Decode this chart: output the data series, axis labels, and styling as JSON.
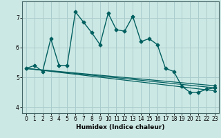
{
  "title": "",
  "xlabel": "Humidex (Indice chaleur)",
  "background_color": "#cce8e4",
  "grid_color": "#aacccc",
  "line_color": "#005f5f",
  "xlim": [
    -0.5,
    23.5
  ],
  "ylim": [
    3.8,
    7.55
  ],
  "xticks": [
    0,
    1,
    2,
    3,
    4,
    5,
    6,
    7,
    8,
    9,
    10,
    11,
    12,
    13,
    14,
    15,
    16,
    17,
    18,
    19,
    20,
    21,
    22,
    23
  ],
  "yticks": [
    4,
    5,
    6,
    7
  ],
  "main_series_x": [
    0,
    1,
    2,
    3,
    4,
    5,
    6,
    7,
    8,
    9,
    10,
    11,
    12,
    13,
    14,
    15,
    16,
    17,
    18,
    19,
    20,
    21,
    22,
    23
  ],
  "main_series_y": [
    5.3,
    5.4,
    5.2,
    6.3,
    5.4,
    5.4,
    7.2,
    6.85,
    6.5,
    6.1,
    7.15,
    6.6,
    6.55,
    7.05,
    6.2,
    6.3,
    6.1,
    5.3,
    5.2,
    4.7,
    4.5,
    4.5,
    4.6,
    4.65
  ],
  "line2_x": [
    0,
    23
  ],
  "line2_y": [
    5.3,
    4.55
  ],
  "line3_x": [
    0,
    23
  ],
  "line3_y": [
    5.3,
    4.65
  ],
  "line4_x": [
    0,
    23
  ],
  "line4_y": [
    5.3,
    4.72
  ],
  "tick_fontsize": 5.5,
  "xlabel_fontsize": 6.5
}
